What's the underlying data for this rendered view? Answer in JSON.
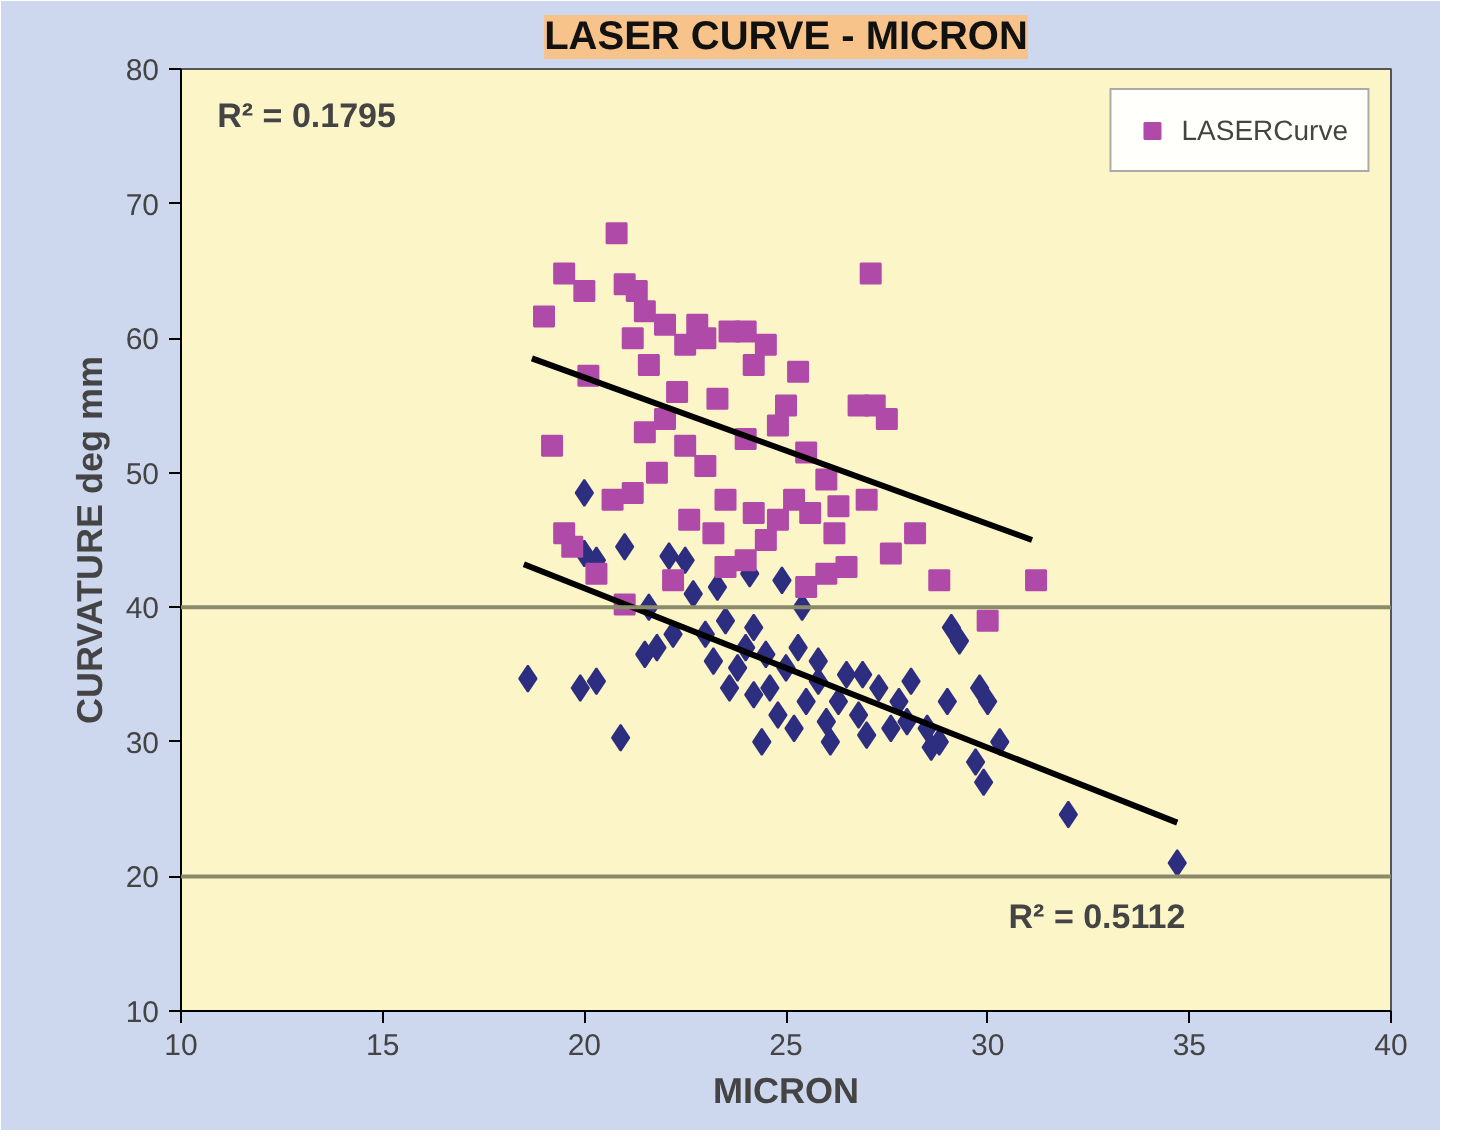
{
  "chart_data": {
    "type": "scatter",
    "title": "LASER CURVE - MICRON",
    "xlabel": "MICRON",
    "ylabel": "CURVATURE deg mm",
    "xlim": [
      10,
      40
    ],
    "xticks": [
      10,
      15,
      20,
      25,
      30,
      35,
      40
    ],
    "ylim": [
      10,
      80
    ],
    "yticks": [
      10,
      20,
      30,
      40,
      50,
      60,
      70,
      80
    ],
    "grid": false,
    "legend": "top right",
    "annotations": [
      "R² = 0.1795",
      "R² = 0.5112"
    ],
    "ref_lines": [
      {
        "axis": "y",
        "value": 20,
        "color": "#8a8a6a"
      },
      {
        "axis": "y",
        "value": 40,
        "color": "#8a8a6a"
      }
    ],
    "series": [
      {
        "color": "#2e2e80",
        "marker": "diamond",
        "x": [
          18.6,
          19.9,
          20.3,
          20,
          20,
          20.3,
          21,
          20.9,
          21.5,
          21.8,
          21.6,
          22.1,
          22.5,
          22.7,
          23,
          23.2,
          23.5,
          23.8,
          24,
          24.2,
          24.5,
          24.6,
          24.8,
          24.4,
          25,
          25.3,
          25.5,
          25.8,
          26,
          26.3,
          26.5,
          26.8,
          27,
          27.3,
          27.6,
          27.8,
          28.1,
          28.5,
          28.8,
          29,
          29.3,
          29.8,
          30,
          29.7,
          29.9,
          30.3,
          32,
          34.7,
          23.3,
          24.1,
          25.4,
          22.2,
          23.6,
          24.2,
          25.8,
          26.9,
          28,
          28.6,
          25.2,
          26.1,
          29.1,
          24.9
        ],
        "values": [
          34.7,
          34,
          34.5,
          48.5,
          44,
          43.5,
          44.5,
          30.3,
          36.5,
          37,
          40,
          43.8,
          43.5,
          41,
          38,
          36,
          39,
          35.5,
          37,
          38.5,
          36.5,
          34,
          32,
          30,
          35.5,
          37,
          33,
          34.5,
          31.5,
          33,
          35,
          32,
          30.5,
          34,
          31,
          33,
          34.5,
          31,
          30,
          33,
          37.5,
          34,
          33,
          28.5,
          27,
          30,
          24.6,
          21,
          41.5,
          42.5,
          40,
          38,
          34,
          33.5,
          36,
          35,
          31.5,
          29.6,
          31,
          30,
          38.5,
          42
        ]
      },
      {
        "name": "LASERCurve",
        "color": "#b04aa8",
        "marker": "square",
        "x": [
          19,
          19.5,
          20,
          20.1,
          19.2,
          19.5,
          19.7,
          20.8,
          21,
          21.3,
          21.5,
          21.2,
          21.6,
          22,
          22.3,
          22.5,
          22.8,
          23,
          23.3,
          23.6,
          24,
          24.2,
          24.5,
          24.8,
          25,
          25.3,
          25.5,
          21.5,
          21.8,
          22,
          22.5,
          23,
          23.5,
          24,
          24.2,
          24.5,
          23.2,
          23.5,
          24,
          24.8,
          25.2,
          25.6,
          26,
          26.3,
          26.8,
          27.2,
          27.1,
          27.5,
          27,
          26.5,
          27.6,
          28.2,
          28.8,
          30,
          31.2,
          20.3,
          20.7,
          21,
          21.2,
          22.6,
          22.2,
          25.5,
          26,
          26.2
        ],
        "values": [
          61.6,
          64.8,
          63.5,
          57.2,
          52,
          45.5,
          44.5,
          67.8,
          64,
          63.5,
          62,
          60,
          58,
          61,
          56,
          59.5,
          61,
          60,
          55.5,
          60.5,
          60.5,
          58,
          59.5,
          53.5,
          55,
          57.5,
          51.5,
          53,
          50,
          54,
          52,
          50.5,
          48,
          52.5,
          47,
          45,
          45.5,
          43,
          43.5,
          46.5,
          48,
          47,
          49.5,
          47.5,
          55,
          55,
          64.8,
          54,
          48,
          43,
          44,
          45.5,
          42,
          39,
          42,
          42.5,
          48,
          40.2,
          48.5,
          46.5,
          42,
          41.5,
          42.5,
          45.5
        ]
      },
      {
        "type": "line",
        "color": "#000000",
        "x": [
          18.7,
          31.1
        ],
        "values": [
          58.5,
          45
        ]
      },
      {
        "type": "line",
        "color": "#000000",
        "x": [
          18.5,
          34.7
        ],
        "values": [
          43.2,
          24
        ]
      }
    ]
  }
}
